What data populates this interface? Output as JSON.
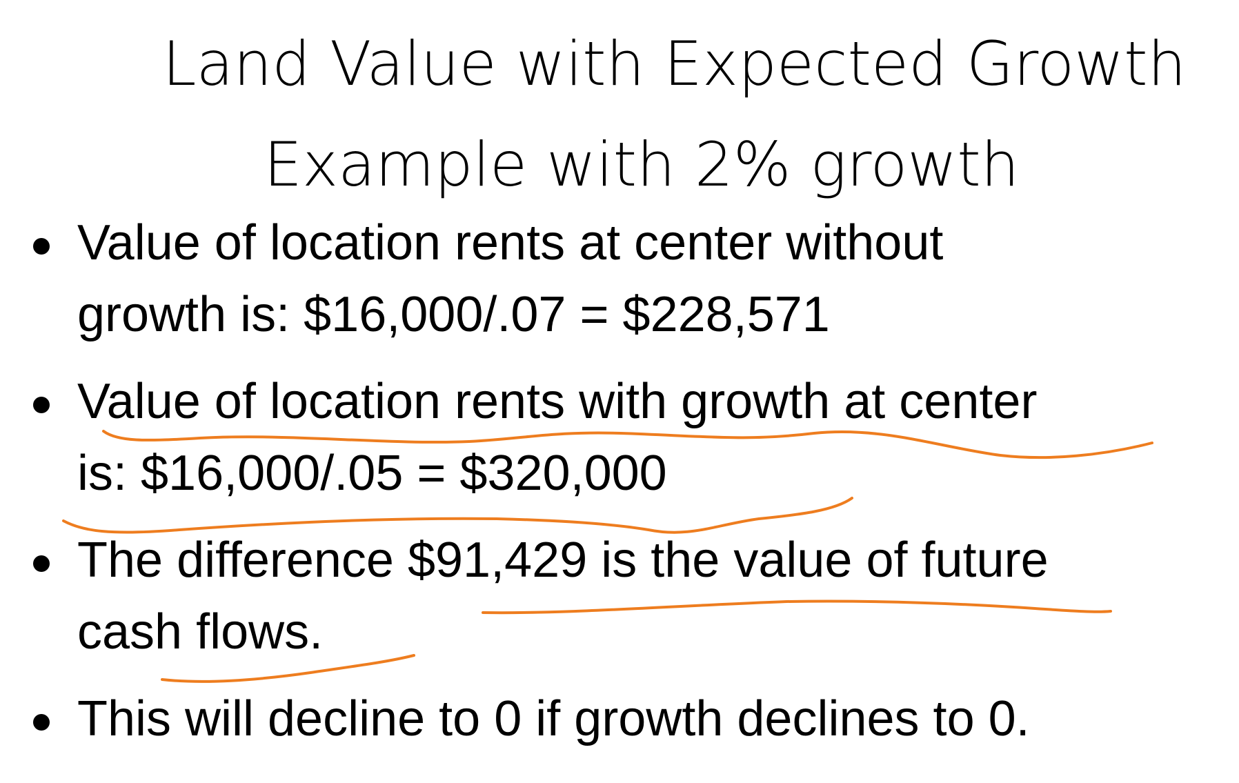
{
  "slide": {
    "title_line1": "Land Value with Expected Growth",
    "title_line2": "Example with 2% growth",
    "bullets": [
      {
        "line1": "Value of location rents at center without",
        "line2": "growth is:   $16,000/.07 = $228,571"
      },
      {
        "line1": "Value of location rents with growth at center",
        "line2": "is:   $16,000/.05 = $320,000"
      },
      {
        "line1": "The difference $91,429 is the value of future",
        "line2": "cash flows."
      },
      {
        "line1": "This will decline to 0 if growth declines to 0."
      }
    ],
    "annotation_color": "#ee7d1f"
  }
}
